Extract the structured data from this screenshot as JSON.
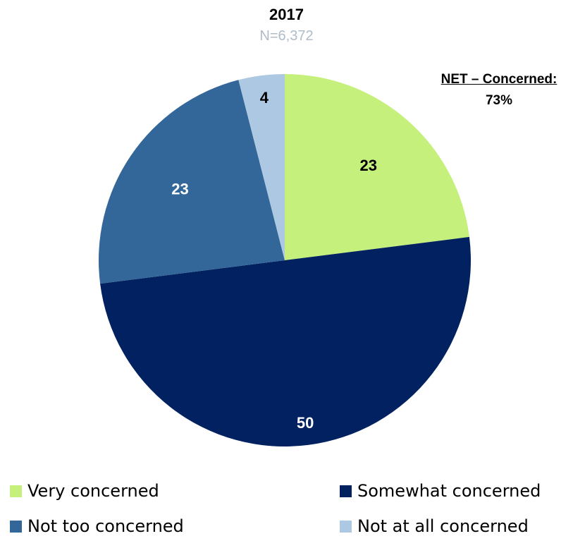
{
  "chart_data": {
    "type": "pie",
    "title": "2017",
    "subtitle": "N=6,372",
    "slices": [
      {
        "label": "Very concerned",
        "value": 23,
        "color": "#c5f07b",
        "label_color": "#000000"
      },
      {
        "label": "Somewhat concerned",
        "value": 50,
        "color": "#022160",
        "label_color": "#ffffff"
      },
      {
        "label": "Not too concerned",
        "value": 23,
        "color": "#336699",
        "label_color": "#ffffff"
      },
      {
        "label": "Not at all concerned",
        "value": 4,
        "color": "#adc8e2",
        "label_color": "#000000"
      }
    ],
    "annotation": {
      "label": "NET – Concerned:",
      "value": "73%"
    },
    "legend_position": "bottom"
  },
  "subtitle_color": "#b0bcc8"
}
